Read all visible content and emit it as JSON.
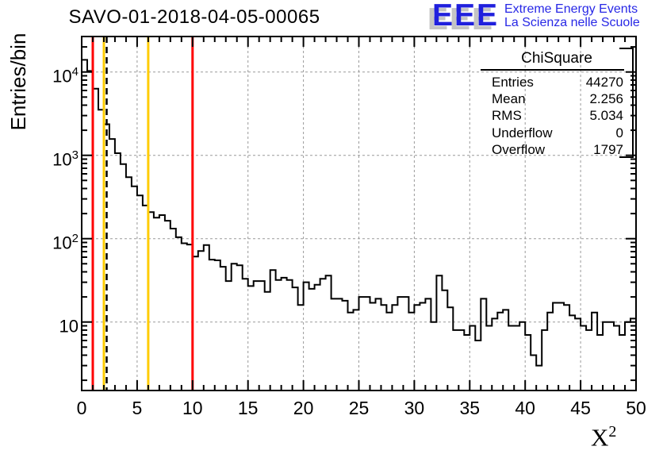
{
  "title": "SAVO-01-2018-04-05-00065",
  "logo": {
    "acronym": "EEE",
    "line1": "Extreme Energy Events",
    "line2": "La Scienza nelle Scuole",
    "color": "#2020dd",
    "shadow_color": "#c4c4c4"
  },
  "axes": {
    "x": {
      "label": "X",
      "label_exponent": "2",
      "min": 0,
      "max": 50,
      "major_tick_values": [
        0,
        5,
        10,
        15,
        20,
        25,
        30,
        35,
        40,
        45,
        50
      ],
      "minor_tick_step": 1
    },
    "y": {
      "label": "Entries/bin",
      "scale": "log",
      "min": 1.5,
      "max": 26600,
      "ticks": [
        {
          "value": 10000,
          "base": "10",
          "exp": "4"
        },
        {
          "value": 1000,
          "base": "10",
          "exp": "3"
        },
        {
          "value": 100,
          "base": "10",
          "exp": "2"
        },
        {
          "value": 10,
          "base": "10",
          "exp": ""
        }
      ]
    }
  },
  "stats_box": {
    "title": "ChiSquare",
    "rows": [
      {
        "label": "Entries",
        "value": "44270"
      },
      {
        "label": "Mean",
        "value": "2.256"
      },
      {
        "label": "RMS",
        "value": "5.034"
      },
      {
        "label": "Underflow",
        "value": "0"
      },
      {
        "label": "Overflow",
        "value": "1797"
      }
    ]
  },
  "chart_data": {
    "type": "bar",
    "subtype": "step-histogram",
    "title": "SAVO-01-2018-04-05-00065",
    "xlabel": "X^2",
    "ylabel": "Entries/bin",
    "xlim": [
      0,
      50
    ],
    "ylim": [
      1.5,
      26600
    ],
    "yscale": "log",
    "grid": true,
    "x_start": 0,
    "bin_width": 0.5,
    "line_color": "#000000",
    "values": [
      14000,
      10300,
      6300,
      3520,
      2360,
      1570,
      1060,
      785,
      546,
      424,
      330,
      250,
      208,
      179,
      192,
      164,
      132,
      104,
      88,
      85,
      61,
      71,
      84,
      56,
      55,
      46,
      31,
      50,
      48,
      33,
      27,
      31,
      31,
      23,
      42,
      32,
      34,
      32,
      26,
      16,
      30,
      25,
      28,
      33,
      36,
      19,
      19,
      18,
      13,
      14,
      20,
      20,
      17,
      19,
      16,
      13,
      16,
      20,
      20,
      13,
      16,
      17,
      19,
      10,
      36,
      24,
      15,
      8,
      8,
      7,
      9,
      6,
      19,
      9,
      11,
      13,
      14,
      9,
      9,
      10,
      7,
      4,
      3,
      8,
      13,
      17,
      17,
      16,
      12,
      11,
      9,
      8,
      13,
      7,
      10,
      10,
      9,
      7,
      10,
      11
    ],
    "stats": {
      "name": "ChiSquare",
      "entries": 44270,
      "mean": 2.256,
      "rms": 5.034,
      "underflow": 0,
      "overflow": 1797
    },
    "vertical_lines": [
      {
        "x": 1,
        "color": "#ff0000",
        "style": "solid",
        "name": "red-cut-low"
      },
      {
        "x": 2,
        "color": "#ffcc00",
        "style": "solid",
        "name": "yellow-cut-low"
      },
      {
        "x": 2.256,
        "color": "#000000",
        "style": "dashed",
        "name": "mean-marker"
      },
      {
        "x": 6,
        "color": "#ffcc00",
        "style": "solid",
        "name": "yellow-cut-high"
      },
      {
        "x": 10,
        "color": "#ff0000",
        "style": "solid",
        "name": "red-cut-high"
      }
    ],
    "legend": null
  }
}
